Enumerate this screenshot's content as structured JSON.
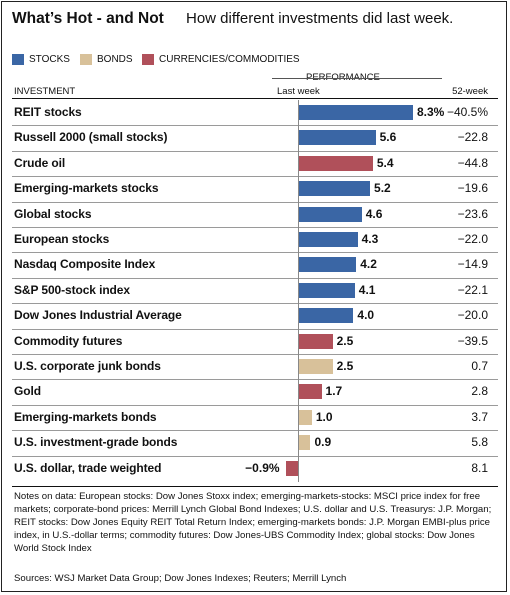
{
  "header": {
    "title": "What’s Hot - and Not",
    "subtitle": "How different investments did last week."
  },
  "legend": [
    {
      "label": "STOCKS",
      "color": "#3a66a5"
    },
    {
      "label": "BONDS",
      "color": "#d8c19a"
    },
    {
      "label": "CURRENCIES/COMMODITIES",
      "color": "#b0505a"
    }
  ],
  "columns": {
    "investment": "INVESTMENT",
    "performance": "PERFORMANCE",
    "last_week": "Last week",
    "week52": "52-week"
  },
  "chart_data": {
    "type": "bar",
    "orientation": "horizontal",
    "categories": [
      "REIT stocks",
      "Russell 2000 (small stocks)",
      "Crude oil",
      "Emerging-markets stocks",
      "Global stocks",
      "European stocks",
      "Nasdaq Composite Index",
      "S&P 500-stock index",
      "Dow Jones Industrial Average",
      "Commodity futures",
      "U.S. corporate junk bonds",
      "Gold",
      "Emerging-markets bonds",
      "U.S. investment-grade bonds",
      "U.S. dollar, trade weighted"
    ],
    "groups": [
      "stocks",
      "stocks",
      "commodities",
      "stocks",
      "stocks",
      "stocks",
      "stocks",
      "stocks",
      "stocks",
      "commodities",
      "bonds",
      "commodities",
      "bonds",
      "bonds",
      "commodities"
    ],
    "last_week": [
      8.3,
      5.6,
      5.4,
      5.2,
      4.6,
      4.3,
      4.2,
      4.1,
      4.0,
      2.5,
      2.5,
      1.7,
      1.0,
      0.9,
      -0.9
    ],
    "last_week_labels": [
      "8.3%",
      "5.6",
      "5.4",
      "5.2",
      "4.6",
      "4.3",
      "4.2",
      "4.1",
      "4.0",
      "2.5",
      "2.5",
      "1.7",
      "1.0",
      "0.9",
      "−0.9%"
    ],
    "week52_labels": [
      "−40.5%",
      "−22.8",
      "−44.8",
      "−19.6",
      "−23.6",
      "−22.0",
      "−14.9",
      "−22.1",
      "−20.0",
      "−39.5",
      "0.7",
      "2.8",
      "3.7",
      "5.8",
      "8.1"
    ],
    "colors": {
      "stocks": "#3a66a5",
      "bonds": "#d8c19a",
      "commodities": "#b0505a"
    }
  },
  "notes": "Notes on data: European stocks: Dow Jones Stoxx index; emerging-markets-stocks: MSCI price index for free markets; corporate-bond prices: Merrill Lynch Global Bond Indexes; U.S. dollar and U.S. Treasurys: J.P. Morgan; REIT stocks: Dow Jones Equity REIT Total Return Index; emerging-markets bonds: J.P. Morgan EMBI-plus price index, in U.S.-dollar terms; commodity futures: Dow Jones-UBS Commodity Index; global stocks: Dow Jones World Stock Index",
  "sources": "Sources: WSJ Market Data Group; Dow Jones Indexes; Reuters; Merrill Lynch"
}
